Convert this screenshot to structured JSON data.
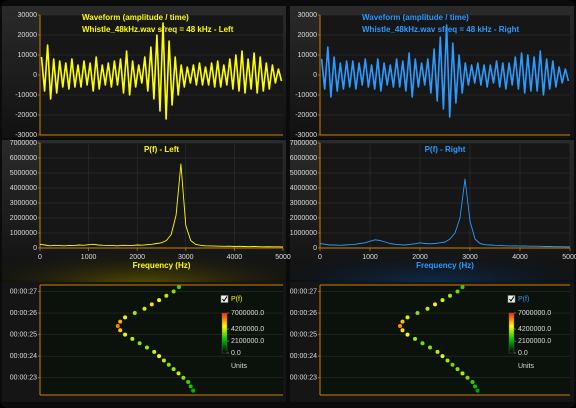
{
  "chart_data": [
    {
      "type": "line",
      "title": "Waveform (amplitude / time)",
      "subtitle": "Whistle_48kHz.wav sfreq = 48 kHz - Left",
      "color": "#ffff00",
      "grid": true,
      "ylim": [
        -30000,
        30000
      ],
      "yticks": [
        -30000,
        -20000,
        -10000,
        0,
        10000,
        20000,
        30000
      ],
      "values": [
        9000,
        -8000,
        15000,
        -12000,
        8000,
        -9000,
        7000,
        -6000,
        6000,
        -7000,
        8000,
        -6000,
        5000,
        -6000,
        7000,
        -5000,
        6000,
        -8000,
        9000,
        -7000,
        5000,
        -5000,
        6000,
        -6000,
        7000,
        -5000,
        8000,
        -9000,
        12000,
        -10000,
        7000,
        -6000,
        5000,
        -4000,
        9000,
        -8000,
        14000,
        -12000,
        20000,
        -18000,
        26000,
        -22000,
        17000,
        -15000,
        9000,
        -10000,
        5000,
        -6000,
        4000,
        -4000,
        5000,
        -5000,
        6000,
        -5000,
        4000,
        -5000,
        6000,
        -6000,
        7000,
        -6000,
        5000,
        -5000,
        8000,
        -7000,
        10000,
        -8000,
        12000,
        -9000,
        8000,
        -7000,
        11000,
        -9000,
        9000,
        -8000,
        6000,
        -7000,
        5000,
        -4000,
        3000,
        -3000
      ]
    },
    {
      "type": "line",
      "title": "Waveform (amplitude / time)",
      "subtitle": "Whistle_48kHz.wav sfreq = 48 kHz - Right",
      "color": "#2b9bff",
      "grid": true,
      "ylim": [
        -30000,
        30000
      ],
      "yticks": [
        -30000,
        -20000,
        -10000,
        0,
        10000,
        20000,
        30000
      ],
      "values": [
        8000,
        -7000,
        14000,
        -11000,
        9000,
        -8000,
        6000,
        -7000,
        7000,
        -6000,
        7000,
        -7000,
        6000,
        -5000,
        8000,
        -6000,
        5000,
        -7000,
        8000,
        -8000,
        6000,
        -5000,
        5000,
        -6000,
        8000,
        -6000,
        7000,
        -8000,
        11000,
        -11000,
        8000,
        -6000,
        6000,
        -5000,
        8000,
        -9000,
        13000,
        -13000,
        19000,
        -17000,
        25000,
        -21000,
        16000,
        -14000,
        10000,
        -9000,
        6000,
        -5000,
        5000,
        -4000,
        6000,
        -5000,
        5000,
        -6000,
        5000,
        -4000,
        7000,
        -6000,
        6000,
        -7000,
        6000,
        -5000,
        9000,
        -7000,
        11000,
        -9000,
        10000,
        -8000,
        9000,
        -8000,
        12000,
        -10000,
        8000,
        -7000,
        7000,
        -6000,
        4000,
        -4000,
        3000,
        -3000
      ]
    },
    {
      "type": "line",
      "title": "P(f) - Left",
      "x_label": "Frequency (Hz)",
      "color": "#ffff00",
      "grid": true,
      "xlim": [
        0,
        5000
      ],
      "xticks": [
        0,
        1000,
        2000,
        3000,
        4000,
        5000
      ],
      "ylim": [
        0,
        7000000
      ],
      "yticks": [
        0,
        1000000,
        2000000,
        3000000,
        4000000,
        5000000,
        6000000,
        7000000
      ],
      "x": [
        0,
        100,
        200,
        300,
        400,
        500,
        600,
        700,
        800,
        900,
        1000,
        1100,
        1200,
        1300,
        1400,
        1500,
        1600,
        1700,
        1800,
        1900,
        2000,
        2100,
        2200,
        2300,
        2400,
        2500,
        2600,
        2700,
        2800,
        2900,
        3000,
        3100,
        3200,
        3300,
        3400,
        3500,
        3600,
        3700,
        3800,
        3900,
        4000,
        4100,
        4200,
        4300,
        4400,
        4500,
        4600,
        4700,
        4800,
        4900,
        5000
      ],
      "values": [
        250000,
        200000,
        150000,
        180000,
        160000,
        150000,
        170000,
        160000,
        200000,
        180000,
        220000,
        250000,
        200000,
        180000,
        170000,
        160000,
        150000,
        180000,
        170000,
        160000,
        200000,
        190000,
        220000,
        250000,
        300000,
        350000,
        500000,
        900000,
        2200000,
        5600000,
        1500000,
        500000,
        250000,
        180000,
        150000,
        140000,
        130000,
        120000,
        110000,
        120000,
        100000,
        110000,
        100000,
        90000,
        100000,
        90000,
        80000,
        90000,
        80000,
        80000,
        70000
      ]
    },
    {
      "type": "line",
      "title": "P(f) - Right",
      "x_label": "Frequency (Hz)",
      "color": "#2b9bff",
      "grid": true,
      "xlim": [
        0,
        5000
      ],
      "xticks": [
        0,
        1000,
        2000,
        3000,
        4000,
        5000
      ],
      "ylim": [
        0,
        7000000
      ],
      "yticks": [
        0,
        1000000,
        2000000,
        3000000,
        4000000,
        5000000,
        6000000,
        7000000
      ],
      "x": [
        0,
        100,
        200,
        300,
        400,
        500,
        600,
        700,
        800,
        900,
        1000,
        1100,
        1200,
        1300,
        1400,
        1500,
        1600,
        1700,
        1800,
        1900,
        2000,
        2100,
        2200,
        2300,
        2400,
        2500,
        2600,
        2700,
        2800,
        2900,
        3000,
        3100,
        3200,
        3300,
        3400,
        3500,
        3600,
        3700,
        3800,
        3900,
        4000,
        4100,
        4200,
        4300,
        4400,
        4500,
        4600,
        4700,
        4800,
        4900,
        5000
      ],
      "values": [
        300000,
        250000,
        200000,
        200000,
        180000,
        200000,
        220000,
        250000,
        300000,
        350000,
        450000,
        550000,
        500000,
        400000,
        300000,
        250000,
        220000,
        200000,
        250000,
        280000,
        350000,
        300000,
        280000,
        300000,
        350000,
        400000,
        600000,
        1000000,
        2000000,
        4600000,
        1800000,
        600000,
        300000,
        220000,
        200000,
        180000,
        170000,
        150000,
        140000,
        150000,
        130000,
        140000,
        120000,
        120000,
        110000,
        100000,
        100000,
        90000,
        90000,
        80000,
        80000
      ]
    },
    {
      "type": "scatter",
      "legend": "P(f)",
      "colorbar_label": "Units",
      "color": "#ffff00",
      "grid": true,
      "colorscale": [
        "#000000",
        "#00c000",
        "#ffff00",
        "#ff2000"
      ],
      "colorbar_lim": [
        0,
        7000000
      ],
      "colorbar_ticks": [
        {
          "value": 7000000,
          "label": "7000000.0"
        },
        {
          "value": 4200000,
          "label": "4200000.0"
        },
        {
          "value": 2100000,
          "label": "2100000.0"
        },
        {
          "value": 0,
          "label": "0.0"
        }
      ],
      "xlim": [
        0,
        5000
      ],
      "ylim": [
        22.2,
        27.3
      ],
      "yticks": [
        {
          "value": 23,
          "label": "00:00:23"
        },
        {
          "value": 24,
          "label": "00:00:24"
        },
        {
          "value": 25,
          "label": "00:00:25"
        },
        {
          "value": 26,
          "label": "00:00:26"
        },
        {
          "value": 27,
          "label": "00:00:27"
        }
      ],
      "x": [
        2860,
        2750,
        2600,
        2450,
        2300,
        2150,
        1950,
        1750,
        1650,
        1600,
        1650,
        1750,
        1900,
        2050,
        2200,
        2350,
        2450,
        2550,
        2650,
        2750,
        2850,
        2950,
        3050,
        3100,
        3150
      ],
      "y": [
        27.2,
        27.0,
        26.8,
        26.6,
        26.4,
        26.2,
        26.0,
        25.8,
        25.6,
        25.4,
        25.2,
        25.0,
        24.8,
        24.6,
        24.4,
        24.2,
        24.0,
        23.8,
        23.6,
        23.4,
        23.2,
        23.0,
        22.8,
        22.6,
        22.4
      ],
      "values": [
        3000000,
        3500000,
        4000000,
        4500000,
        5000000,
        4200000,
        3800000,
        4500000,
        5500000,
        6000000,
        5200000,
        4800000,
        4000000,
        3600000,
        3800000,
        4200000,
        4600000,
        4000000,
        3500000,
        3800000,
        4200000,
        3600000,
        3000000,
        2600000,
        2200000
      ]
    },
    {
      "type": "scatter",
      "legend": "P(f)",
      "colorbar_label": "Units",
      "color": "#2b9bff",
      "grid": true,
      "colorscale": [
        "#000000",
        "#00c000",
        "#ffff00",
        "#ff2000"
      ],
      "colorbar_lim": [
        0,
        7000000
      ],
      "colorbar_ticks": [
        {
          "value": 7000000,
          "label": "7000000.0"
        },
        {
          "value": 4200000,
          "label": "4200000.0"
        },
        {
          "value": 2100000,
          "label": "2100000.0"
        },
        {
          "value": 0,
          "label": "0.0"
        }
      ],
      "xlim": [
        0,
        5000
      ],
      "ylim": [
        22.2,
        27.3
      ],
      "yticks": [
        {
          "value": 23,
          "label": "00:00:23"
        },
        {
          "value": 24,
          "label": "00:00:24"
        },
        {
          "value": 25,
          "label": "00:00:25"
        },
        {
          "value": 26,
          "label": "00:00:26"
        },
        {
          "value": 27,
          "label": "00:00:27"
        }
      ],
      "x": [
        2850,
        2750,
        2600,
        2450,
        2300,
        2150,
        1950,
        1750,
        1650,
        1600,
        1650,
        1750,
        1900,
        2050,
        2200,
        2350,
        2450,
        2550,
        2650,
        2750,
        2850,
        2950,
        3050,
        3100,
        3150
      ],
      "y": [
        27.2,
        27.0,
        26.8,
        26.6,
        26.4,
        26.2,
        26.0,
        25.8,
        25.6,
        25.4,
        25.2,
        25.0,
        24.8,
        24.6,
        24.4,
        24.2,
        24.0,
        23.8,
        23.6,
        23.4,
        23.2,
        23.0,
        22.8,
        22.6,
        22.4
      ],
      "values": [
        2800000,
        3300000,
        3800000,
        4300000,
        4800000,
        4000000,
        3600000,
        4300000,
        5300000,
        5800000,
        5000000,
        4600000,
        3800000,
        3400000,
        3600000,
        4000000,
        4400000,
        3800000,
        3300000,
        3600000,
        4000000,
        3400000,
        2800000,
        2400000,
        2000000
      ]
    }
  ]
}
